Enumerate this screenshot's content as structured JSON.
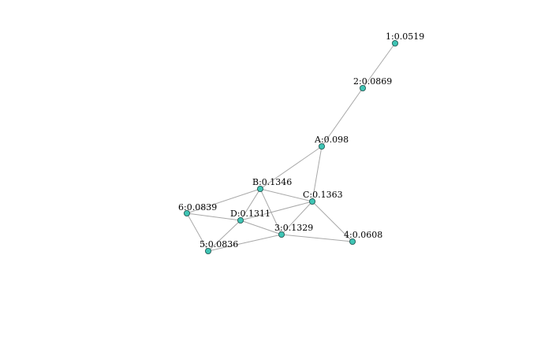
{
  "graph": {
    "node_color": "#3fc4b4",
    "edge_color": "#a8a8a8",
    "nodes": [
      {
        "id": "1",
        "label": "1:0.0519"
      },
      {
        "id": "2",
        "label": "2:0.0869"
      },
      {
        "id": "A",
        "label": "A:0.098"
      },
      {
        "id": "B",
        "label": "B:0.1346"
      },
      {
        "id": "C",
        "label": "C:0.1363"
      },
      {
        "id": "6",
        "label": "6:0.0839"
      },
      {
        "id": "D",
        "label": "D:0.1311"
      },
      {
        "id": "3",
        "label": "3:0.1329"
      },
      {
        "id": "4",
        "label": "4:0.0608"
      },
      {
        "id": "5",
        "label": "5:0.0836"
      }
    ],
    "edges": [
      [
        "1",
        "2"
      ],
      [
        "2",
        "A"
      ],
      [
        "A",
        "B"
      ],
      [
        "A",
        "C"
      ],
      [
        "B",
        "6"
      ],
      [
        "B",
        "C"
      ],
      [
        "B",
        "D"
      ],
      [
        "B",
        "3"
      ],
      [
        "6",
        "D"
      ],
      [
        "6",
        "5"
      ],
      [
        "D",
        "5"
      ],
      [
        "D",
        "C"
      ],
      [
        "D",
        "3"
      ],
      [
        "C",
        "3"
      ],
      [
        "C",
        "4"
      ],
      [
        "3",
        "4"
      ],
      [
        "3",
        "5"
      ]
    ]
  }
}
